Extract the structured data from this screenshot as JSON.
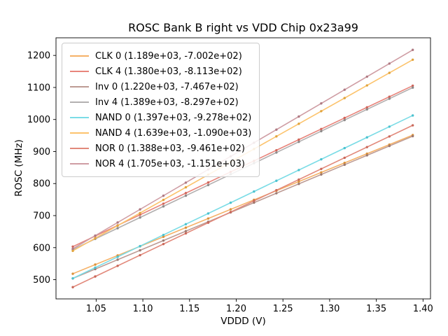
{
  "chart_data": {
    "type": "scatter",
    "title": "ROSC Bank B right vs VDD Chip 0x23a99",
    "xlabel": "VDDD (V)",
    "ylabel": "ROSC (MHz)",
    "xlim": [
      1.007,
      1.408
    ],
    "ylim": [
      440,
      1255
    ],
    "grid": false,
    "legend_position": "upper left",
    "xticks": {
      "values": [
        1.05,
        1.1,
        1.15,
        1.2,
        1.25,
        1.3,
        1.35,
        1.4
      ],
      "labels": [
        "1.05",
        "1.10",
        "1.15",
        "1.20",
        "1.25",
        "1.30",
        "1.35",
        "1.40"
      ]
    },
    "yticks": {
      "values": [
        500,
        600,
        700,
        800,
        900,
        1000,
        1100,
        1200
      ],
      "labels": [
        "500",
        "600",
        "700",
        "800",
        "900",
        "1000",
        "1100",
        "1200"
      ]
    },
    "x": [
      1.025,
      1.049,
      1.073,
      1.097,
      1.122,
      1.146,
      1.17,
      1.194,
      1.219,
      1.243,
      1.267,
      1.291,
      1.316,
      1.34,
      1.364,
      1.389
    ],
    "fit_x_range": [
      1.025,
      1.389
    ],
    "series": [
      {
        "name": "CLK 0",
        "legend_label": "CLK 0 (1.189e+03, -7.002e+02)",
        "slope": 1189.0,
        "intercept": -700.2,
        "line_color": "#f5b167",
        "marker_color": "#d9923c",
        "y": [
          518.5,
          547.1,
          575.6,
          604.1,
          633.9,
          662.4,
          690.9,
          719.5,
          749.2,
          777.7,
          806.3,
          834.8,
          864.5,
          893.1,
          921.6,
          951.3
        ]
      },
      {
        "name": "CLK 4",
        "legend_label": "CLK 4 (1.380e+03, -8.113e+02)",
        "slope": 1380.0,
        "intercept": -811.3,
        "line_color": "#e8857c",
        "marker_color": "#cf655a",
        "y": [
          603.2,
          636.3,
          669.4,
          702.6,
          737.1,
          770.2,
          803.3,
          836.4,
          870.9,
          904.0,
          937.2,
          970.3,
          1004.8,
          1037.9,
          1071.0,
          1105.5
        ]
      },
      {
        "name": "Inv 0",
        "legend_label": "Inv 0 (1.220e+03, -7.467e+02)",
        "slope": 1220.0,
        "intercept": -746.7,
        "line_color": "#bd9b94",
        "marker_color": "#9c7970",
        "y": [
          503.8,
          533.1,
          562.4,
          591.6,
          622.1,
          651.4,
          680.7,
          710.0,
          740.5,
          769.8,
          799.0,
          828.3,
          858.8,
          888.1,
          917.4,
          947.9
        ]
      },
      {
        "name": "Inv 4",
        "legend_label": "Inv 4 (1.389e+03, -8.297e+02)",
        "slope": 1389.0,
        "intercept": -829.7,
        "line_color": "#b3b0b0",
        "marker_color": "#8d8a8a",
        "y": [
          594.0,
          627.4,
          660.7,
          694.0,
          728.8,
          762.1,
          795.4,
          828.8,
          863.5,
          896.8,
          930.2,
          963.5,
          998.2,
          1031.6,
          1064.9,
          1099.6
        ]
      },
      {
        "name": "NAND 0",
        "legend_label": "NAND 0 (1.397e+03, -9.278e+02)",
        "slope": 1397.0,
        "intercept": -927.8,
        "line_color": "#7bdce6",
        "marker_color": "#4cc2cf",
        "y": [
          504.1,
          537.7,
          571.2,
          604.7,
          639.6,
          673.2,
          706.7,
          740.2,
          775.1,
          808.7,
          842.2,
          875.7,
          910.7,
          944.2,
          977.7,
          1012.6
        ]
      },
      {
        "name": "NAND 4",
        "legend_label": "NAND 4 (1.639e+03, -1.090e+03)",
        "slope": 1639.0,
        "intercept": -1090.0,
        "line_color": "#fcc36c",
        "marker_color": "#e0a43e",
        "y": [
          590.0,
          629.3,
          668.6,
          708.0,
          749.0,
          788.3,
          827.6,
          867.0,
          907.9,
          947.3,
          986.6,
          1026.0,
          1066.9,
          1106.3,
          1145.6,
          1186.6
        ]
      },
      {
        "name": "NOR 0",
        "legend_label": "NOR 0 (1.388e+03, -9.461e+02)",
        "slope": 1388.0,
        "intercept": -946.1,
        "line_color": "#e2897b",
        "marker_color": "#c8685a",
        "y": [
          476.6,
          509.9,
          543.2,
          576.5,
          611.2,
          644.5,
          677.9,
          711.2,
          745.9,
          779.2,
          812.5,
          845.8,
          880.5,
          913.8,
          947.1,
          981.8
        ]
      },
      {
        "name": "NOR 4",
        "legend_label": "NOR 4 (1.705e+03, -1.151e+03)",
        "slope": 1705.0,
        "intercept": -1151.0,
        "line_color": "#cf9da4",
        "marker_color": "#af7a83",
        "y": [
          596.6,
          637.5,
          678.5,
          719.4,
          762.0,
          802.9,
          843.9,
          884.8,
          927.4,
          968.3,
          1009.2,
          1050.2,
          1092.8,
          1133.7,
          1174.6,
          1217.3
        ]
      }
    ]
  }
}
